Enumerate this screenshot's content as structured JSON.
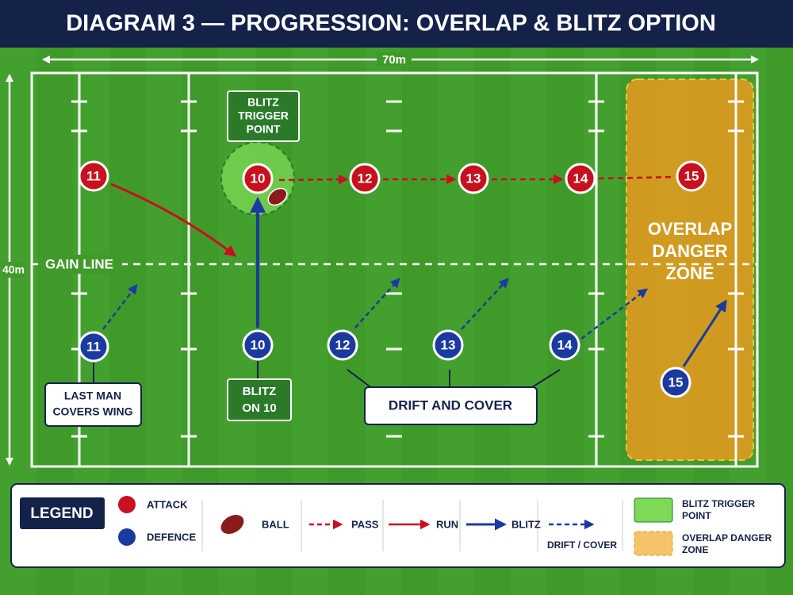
{
  "header": {
    "title": "DIAGRAM 3 — PROGRESSION: OVERLAP & BLITZ OPTION"
  },
  "pitch": {
    "width_label": "70m",
    "height_label": "40m",
    "gain_line": "GAIN LINE",
    "attack": [
      "11",
      "10",
      "12",
      "13",
      "14",
      "15"
    ],
    "defence": [
      "11",
      "10",
      "12",
      "13",
      "14",
      "15"
    ],
    "callouts": {
      "blitz_trigger": [
        "BLITZ",
        "TRIGGER",
        "POINT"
      ],
      "blitz_on": [
        "BLITZ",
        "ON 10"
      ],
      "last_man": [
        "LAST MAN",
        "COVERS WING"
      ],
      "drift": "DRIFT AND COVER",
      "danger": [
        "OVERLAP",
        "DANGER",
        "ZONE"
      ]
    }
  },
  "legend": {
    "title": "LEGEND",
    "attack": "ATTACK",
    "defence": "DEFENCE",
    "ball": "BALL",
    "pass": "PASS",
    "run": "RUN",
    "blitz": "BLITZ",
    "drift": "DRIFT / COVER",
    "trigger": [
      "BLITZ TRIGGER",
      "POINT"
    ],
    "danger": [
      "OVERLAP DANGER",
      "ZONE"
    ]
  }
}
